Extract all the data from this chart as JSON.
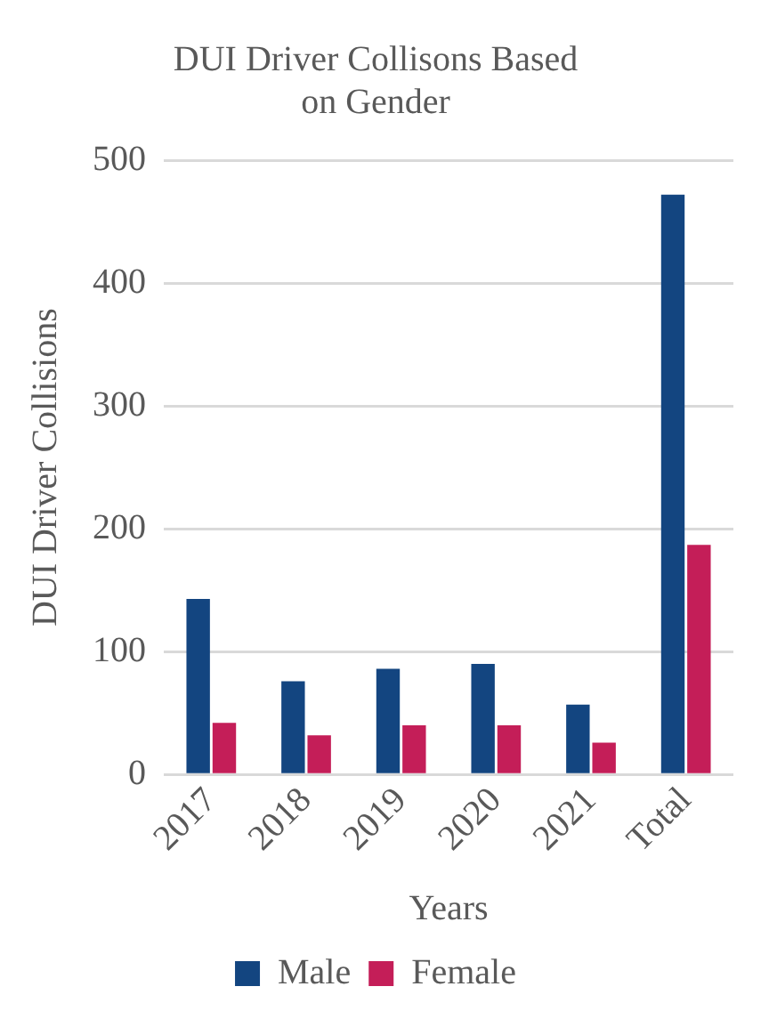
{
  "chart_data": {
    "type": "bar",
    "title": [
      "DUI Driver Collisons Based",
      "on Gender"
    ],
    "xlabel": "Years",
    "ylabel": "DUI Driver Collisions",
    "categories": [
      "2017",
      "2018",
      "2019",
      "2020",
      "2021",
      "Total"
    ],
    "series": [
      {
        "name": "Male",
        "color": "#134580",
        "values": [
          143,
          76,
          86,
          90,
          57,
          472
        ]
      },
      {
        "name": "Female",
        "color": "#c41e58",
        "values": [
          42,
          32,
          40,
          40,
          26,
          187
        ]
      }
    ],
    "ylim": [
      0,
      500
    ],
    "yticks": [
      0,
      100,
      200,
      300,
      400,
      500
    ],
    "grid": "y",
    "legend": "bottom"
  }
}
